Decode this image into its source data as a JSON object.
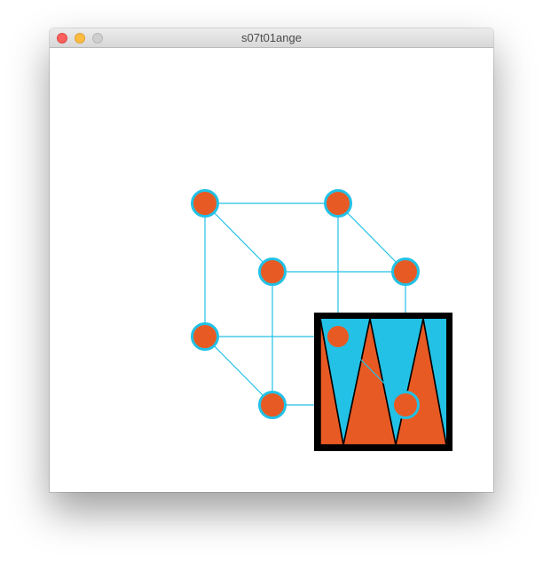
{
  "window": {
    "title": "s07t01ange",
    "controls": [
      "close",
      "minimize",
      "zoom"
    ]
  },
  "sketch": {
    "colors": {
      "background": "#ffffff",
      "edge": "#22c1e5",
      "node_fill": "#e85a24",
      "node_stroke": "#22c1e5",
      "panel_border": "#000000",
      "panel_sky": "#22c1e5",
      "panel_spike": "#e85a24"
    }
  }
}
